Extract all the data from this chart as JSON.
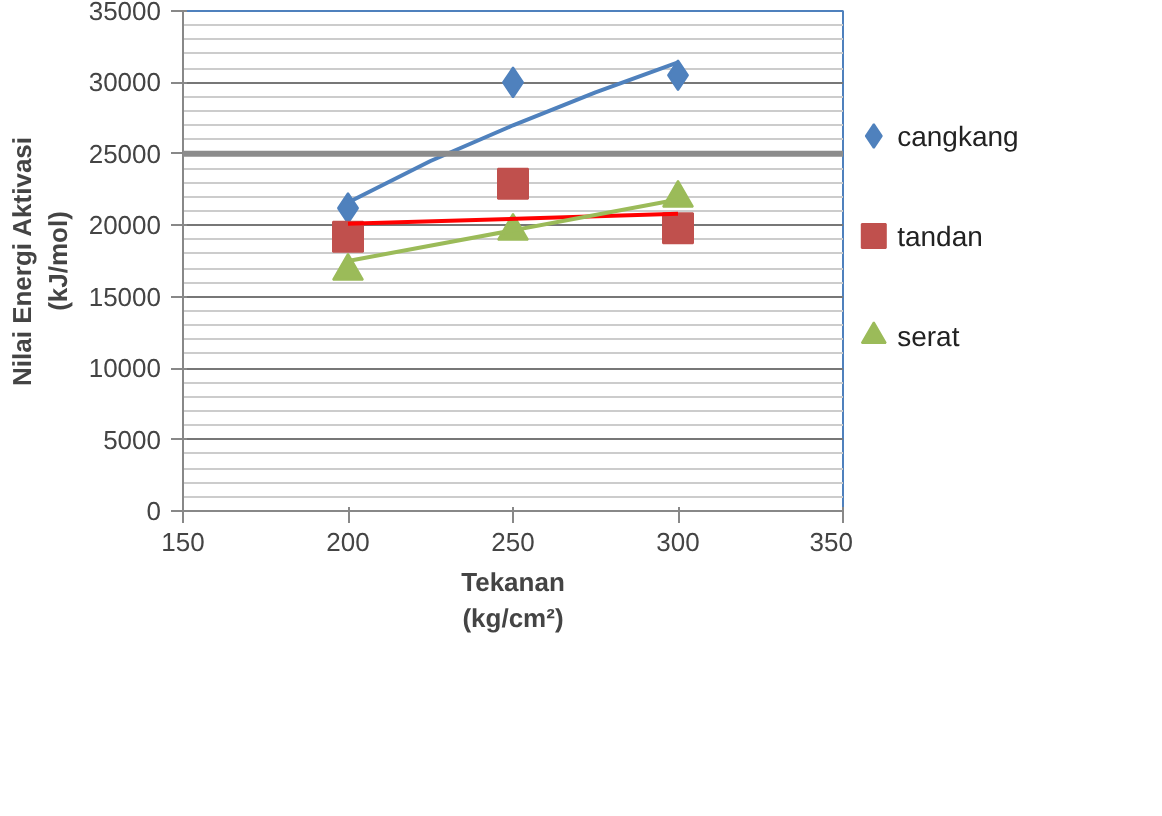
{
  "chart_data": {
    "type": "scatter",
    "xlabel": "Tekanan\n(kg/cm²)",
    "ylabel": "Nilai Energi Aktivasi\n(kJ/mol)",
    "x": [
      200,
      250,
      300
    ],
    "series": [
      {
        "name": "cangkang",
        "color": "#4f81bd",
        "marker": "diamond",
        "values": [
          21200,
          30000,
          30500
        ]
      },
      {
        "name": "tandan",
        "color": "#c0504d",
        "marker": "square",
        "values": [
          19200,
          22900,
          19800
        ]
      },
      {
        "name": "serat",
        "color": "#9bbb59",
        "marker": "triangle",
        "values": [
          16800,
          19600,
          21900
        ]
      },
      {
        "type": "line",
        "color": "#4f81bd",
        "x": [
          200,
          225,
          250,
          275,
          300
        ],
        "values": [
          21600,
          24500,
          27000,
          29300,
          31400
        ]
      },
      {
        "type": "line",
        "color": "#ff0000",
        "x": [
          200,
          300
        ],
        "values": [
          20100,
          20800
        ]
      },
      {
        "type": "line",
        "color": "#9bbb59",
        "x": [
          200,
          300
        ],
        "values": [
          17500,
          21800
        ]
      }
    ],
    "xlim": [
      150,
      350
    ],
    "xticks": [
      150,
      200,
      250,
      300,
      350
    ],
    "ylim": [
      0,
      35000
    ],
    "yticks": [
      0,
      5000,
      10000,
      15000,
      20000,
      25000,
      30000,
      35000
    ],
    "ref_lines": [
      {
        "axis": "y",
        "value": 25000,
        "color": "#8c8c8c"
      }
    ],
    "grid": "y",
    "legend": "right"
  }
}
